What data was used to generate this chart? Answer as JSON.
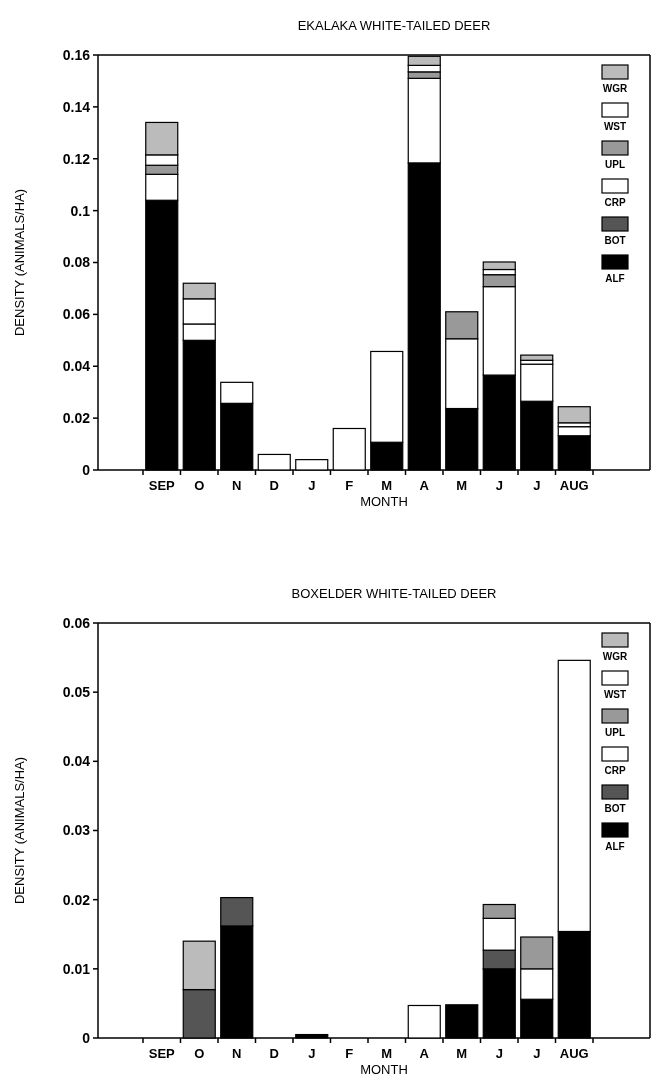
{
  "chart_data": [
    {
      "type": "bar",
      "stacked": true,
      "title": "EKALAKA WHITE-TAILED DEER",
      "xlabel": "MONTH",
      "ylabel": "DENSITY (ANIMALS/HA)",
      "legend": "top right",
      "categories": [
        "SEP",
        "O",
        "N",
        "D",
        "J",
        "F",
        "M",
        "A",
        "M",
        "J",
        "J",
        "AUG"
      ],
      "ylim": [
        0,
        0.16
      ],
      "yticks": [
        0,
        0.02,
        0.04,
        0.06,
        0.08,
        0.1,
        0.12,
        0.14,
        0.16
      ],
      "series": [
        {
          "name": "ALF",
          "color": "#000000",
          "values": [
            0.104,
            0.05,
            0.0257,
            0,
            0,
            0,
            0.0107,
            0.1184,
            0.0237,
            0.0366,
            0.0265,
            0.0132
          ]
        },
        {
          "name": "BOT",
          "color": "#555555",
          "values": [
            0,
            0,
            0,
            0,
            0,
            0,
            0,
            0,
            0,
            0,
            0,
            0
          ]
        },
        {
          "name": "CRP",
          "color": "#ffffff",
          "values": [
            0.01,
            0.0063,
            0.0081,
            0.006,
            0.004,
            0.016,
            0.035,
            0.0326,
            0.0269,
            0.0341,
            0.0143,
            0.0035
          ]
        },
        {
          "name": "UPL",
          "color": "#999999",
          "values": [
            0.0035,
            0,
            0,
            0,
            0,
            0,
            0,
            0.0025,
            0.0104,
            0.0046,
            0,
            0
          ]
        },
        {
          "name": "WST",
          "color": "#ffffff",
          "values": [
            0.004,
            0.0097,
            0,
            0,
            0,
            0,
            0,
            0.0025,
            0,
            0.002,
            0.0015,
            0.0015
          ]
        },
        {
          "name": "WGR",
          "color": "#bbbbbb",
          "values": [
            0.0125,
            0.006,
            0,
            0,
            0,
            0,
            0,
            0.0035,
            0,
            0.0029,
            0.002,
            0.0062
          ]
        }
      ]
    },
    {
      "type": "bar",
      "stacked": true,
      "title": "BOXELDER WHITE-TAILED DEER",
      "xlabel": "MONTH",
      "ylabel": "DENSITY (ANIMALS/HA)",
      "legend": "top right",
      "categories": [
        "SEP",
        "O",
        "N",
        "D",
        "J",
        "F",
        "M",
        "A",
        "M",
        "J",
        "J",
        "AUG"
      ],
      "ylim": [
        0,
        0.06
      ],
      "yticks": [
        0,
        0.01,
        0.02,
        0.03,
        0.04,
        0.05,
        0.06
      ],
      "series": [
        {
          "name": "ALF",
          "color": "#000000",
          "values": [
            0,
            0,
            0.0162,
            0,
            0.0005,
            0,
            0,
            0,
            0.0048,
            0.01,
            0.0056,
            0.0154
          ]
        },
        {
          "name": "BOT",
          "color": "#555555",
          "values": [
            0,
            0.007,
            0.0041,
            0,
            0,
            0,
            0,
            0,
            0,
            0.0027,
            0,
            0
          ]
        },
        {
          "name": "CRP",
          "color": "#ffffff",
          "values": [
            0,
            0,
            0,
            0,
            0,
            0,
            0,
            0.0047,
            0,
            0.0046,
            0.0044,
            0.0392
          ]
        },
        {
          "name": "UPL",
          "color": "#999999",
          "values": [
            0,
            0,
            0,
            0,
            0,
            0,
            0,
            0,
            0,
            0.002,
            0.0046,
            0
          ]
        },
        {
          "name": "WST",
          "color": "#ffffff",
          "values": [
            0,
            0,
            0,
            0,
            0,
            0,
            0,
            0,
            0,
            0,
            0,
            0
          ]
        },
        {
          "name": "WGR",
          "color": "#bbbbbb",
          "values": [
            0,
            0.007,
            0,
            0,
            0,
            0,
            0,
            0,
            0,
            0,
            0,
            0
          ]
        }
      ]
    }
  ]
}
